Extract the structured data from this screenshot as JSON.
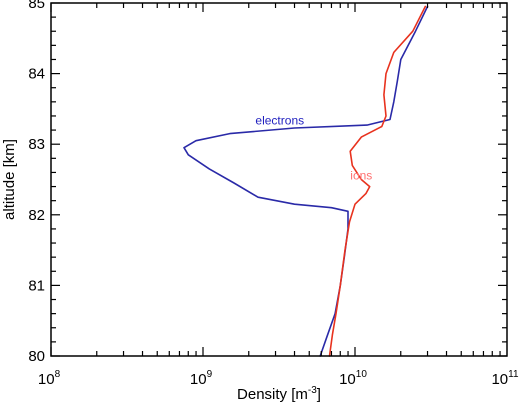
{
  "chart_data": {
    "type": "line",
    "title": "",
    "xlabel": "Density [m",
    "xlabel_sup": "-3",
    "xlabel_end": "]",
    "ylabel": "altitude [km]",
    "xscale": "log",
    "xlim": [
      100000000,
      100000000000
    ],
    "ylim": [
      80,
      85
    ],
    "x_ticks": [
      {
        "base": "10",
        "exp": "8",
        "value": 100000000
      },
      {
        "base": "10",
        "exp": "9",
        "value": 1000000000
      },
      {
        "base": "10",
        "exp": "10",
        "value": 10000000000
      },
      {
        "base": "10",
        "exp": "11",
        "value": 100000000000
      }
    ],
    "y_ticks": [
      "80",
      "81",
      "82",
      "83",
      "84",
      "85"
    ],
    "grid": false,
    "legend": "none",
    "annotations": [
      {
        "text": "electrons",
        "series": "electrons",
        "color": "#1f1fbf",
        "x": 3200000000,
        "y": 83.28
      },
      {
        "text": "ions",
        "series": "ions",
        "color": "#ff7070",
        "x": 11000000000,
        "y": 82.5
      }
    ],
    "series": [
      {
        "name": "electrons",
        "color": "#2a2aa8",
        "points": [
          [
            30000000000,
            84.95
          ],
          [
            25000000000,
            84.6
          ],
          [
            20000000000,
            84.2
          ],
          [
            19000000000,
            83.9
          ],
          [
            18000000000,
            83.6
          ],
          [
            17000000000,
            83.35
          ],
          [
            12000000000,
            83.27
          ],
          [
            4000000000,
            83.23
          ],
          [
            1500000000,
            83.15
          ],
          [
            900000000,
            83.05
          ],
          [
            750000000,
            82.95
          ],
          [
            800000000,
            82.85
          ],
          [
            1100000000,
            82.65
          ],
          [
            1600000000,
            82.45
          ],
          [
            2300000000,
            82.25
          ],
          [
            4000000000,
            82.15
          ],
          [
            7000000000,
            82.1
          ],
          [
            9000000000,
            82.05
          ],
          [
            9000000000,
            81.8
          ],
          [
            8500000000,
            81.4
          ],
          [
            8000000000,
            81.0
          ],
          [
            7400000000,
            80.6
          ],
          [
            6600000000,
            80.3
          ],
          [
            5900000000,
            80.0
          ]
        ]
      },
      {
        "name": "ions",
        "color": "#e8321e",
        "points": [
          [
            29000000000,
            84.95
          ],
          [
            24000000000,
            84.6
          ],
          [
            18000000000,
            84.3
          ],
          [
            16000000000,
            84.0
          ],
          [
            15500000000,
            83.7
          ],
          [
            16000000000,
            83.4
          ],
          [
            15000000000,
            83.25
          ],
          [
            11000000000,
            83.1
          ],
          [
            9300000000,
            82.9
          ],
          [
            9600000000,
            82.7
          ],
          [
            11000000000,
            82.5
          ],
          [
            12500000000,
            82.4
          ],
          [
            11800000000,
            82.3
          ],
          [
            10000000000,
            82.15
          ],
          [
            9200000000,
            81.9
          ],
          [
            8600000000,
            81.5
          ],
          [
            8000000000,
            81.0
          ],
          [
            7500000000,
            80.6
          ],
          [
            7100000000,
            80.3
          ],
          [
            6800000000,
            80.0
          ]
        ]
      }
    ]
  }
}
